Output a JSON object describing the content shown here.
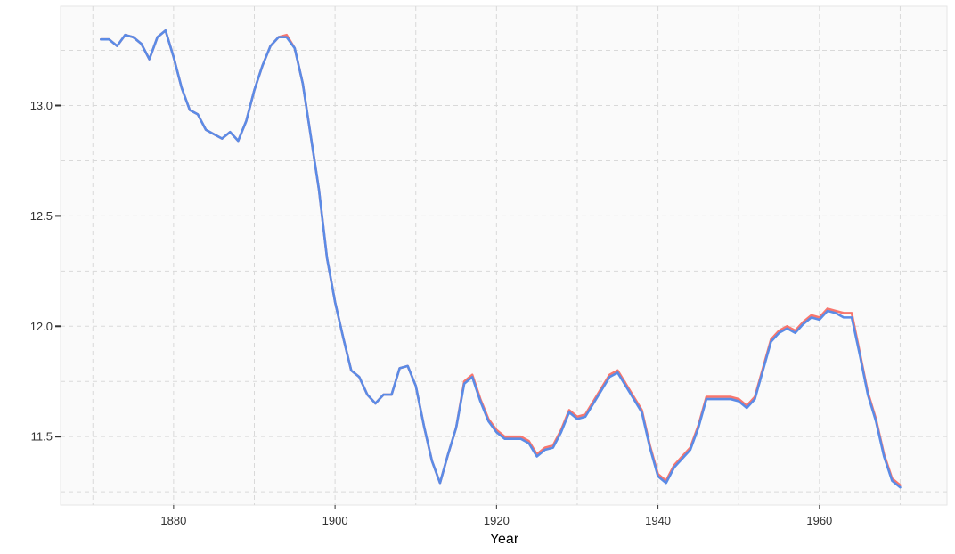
{
  "chart_data": {
    "type": "line",
    "title": "",
    "xlabel": "Year",
    "ylabel": "",
    "xlim": [
      1866,
      1975.8
    ],
    "ylim": [
      11.19,
      13.45
    ],
    "x_ticks": [
      1880,
      1900,
      1920,
      1940,
      1960
    ],
    "x_tick_labels": [
      "1880",
      "1900",
      "1920",
      "1940",
      "1960"
    ],
    "y_ticks": [
      11.5,
      12.0,
      12.5,
      13.0
    ],
    "y_tick_labels": [
      "11.5",
      "12.0",
      "12.5",
      "13.0"
    ],
    "grid": true,
    "legend": "none",
    "colors": {
      "red_series": "#f8766d",
      "blue_series": "#5b8be6",
      "panel": "#fafafa",
      "grid": "#d9d9d9"
    },
    "x": [
      1871,
      1872,
      1873,
      1874,
      1875,
      1876,
      1877,
      1878,
      1879,
      1880,
      1881,
      1882,
      1883,
      1884,
      1885,
      1886,
      1887,
      1888,
      1889,
      1890,
      1891,
      1892,
      1893,
      1894,
      1895,
      1896,
      1897,
      1898,
      1899,
      1900,
      1901,
      1902,
      1903,
      1904,
      1905,
      1906,
      1907,
      1908,
      1909,
      1910,
      1911,
      1912,
      1913,
      1914,
      1915,
      1916,
      1917,
      1918,
      1919,
      1920,
      1921,
      1922,
      1923,
      1924,
      1925,
      1926,
      1927,
      1928,
      1929,
      1930,
      1931,
      1932,
      1933,
      1934,
      1935,
      1936,
      1937,
      1938,
      1939,
      1940,
      1941,
      1942,
      1943,
      1944,
      1945,
      1946,
      1947,
      1948,
      1949,
      1950,
      1951,
      1952,
      1953,
      1954,
      1955,
      1956,
      1957,
      1958,
      1959,
      1960,
      1961,
      1962,
      1963,
      1964,
      1965,
      1966,
      1967,
      1968,
      1969,
      1970
    ],
    "series": [
      {
        "values": [
          13.3,
          13.3,
          13.27,
          13.32,
          13.31,
          13.28,
          13.21,
          13.31,
          13.34,
          13.22,
          13.08,
          12.98,
          12.96,
          12.89,
          12.87,
          12.85,
          12.88,
          12.84,
          12.93,
          13.07,
          13.18,
          13.27,
          13.31,
          13.32,
          13.26,
          13.1,
          12.86,
          12.62,
          12.31,
          12.11,
          11.95,
          11.8,
          11.77,
          11.69,
          11.65,
          11.69,
          11.69,
          11.81,
          11.82,
          11.73,
          11.55,
          11.39,
          11.29,
          11.42,
          11.54,
          11.75,
          11.78,
          11.67,
          11.58,
          11.53,
          11.5,
          11.5,
          11.5,
          11.48,
          11.42,
          11.45,
          11.46,
          11.53,
          11.62,
          11.59,
          11.6,
          11.66,
          11.72,
          11.78,
          11.8,
          11.74,
          11.68,
          11.62,
          11.46,
          11.33,
          11.3,
          11.37,
          11.41,
          11.45,
          11.55,
          11.68,
          11.68,
          11.68,
          11.68,
          11.67,
          11.64,
          11.68,
          11.81,
          11.94,
          11.98,
          12.0,
          11.98,
          12.02,
          12.05,
          12.04,
          12.08,
          12.07,
          12.06,
          12.06,
          11.88,
          11.7,
          11.58,
          11.42,
          11.31,
          11.28
        ]
      },
      {
        "values": [
          13.3,
          13.3,
          13.27,
          13.32,
          13.31,
          13.28,
          13.21,
          13.31,
          13.34,
          13.22,
          13.08,
          12.98,
          12.96,
          12.89,
          12.87,
          12.85,
          12.88,
          12.84,
          12.93,
          13.07,
          13.18,
          13.27,
          13.31,
          13.31,
          13.26,
          13.1,
          12.86,
          12.62,
          12.31,
          12.11,
          11.95,
          11.8,
          11.77,
          11.69,
          11.65,
          11.69,
          11.69,
          11.81,
          11.82,
          11.73,
          11.55,
          11.39,
          11.29,
          11.42,
          11.54,
          11.74,
          11.77,
          11.66,
          11.57,
          11.52,
          11.49,
          11.49,
          11.49,
          11.47,
          11.41,
          11.44,
          11.45,
          11.52,
          11.61,
          11.58,
          11.59,
          11.65,
          11.71,
          11.77,
          11.79,
          11.73,
          11.67,
          11.61,
          11.45,
          11.32,
          11.29,
          11.36,
          11.4,
          11.44,
          11.54,
          11.67,
          11.67,
          11.67,
          11.67,
          11.66,
          11.63,
          11.67,
          11.8,
          11.93,
          11.97,
          11.99,
          11.97,
          12.01,
          12.04,
          12.03,
          12.07,
          12.06,
          12.04,
          12.04,
          11.87,
          11.69,
          11.57,
          11.41,
          11.3,
          11.27
        ]
      }
    ]
  }
}
